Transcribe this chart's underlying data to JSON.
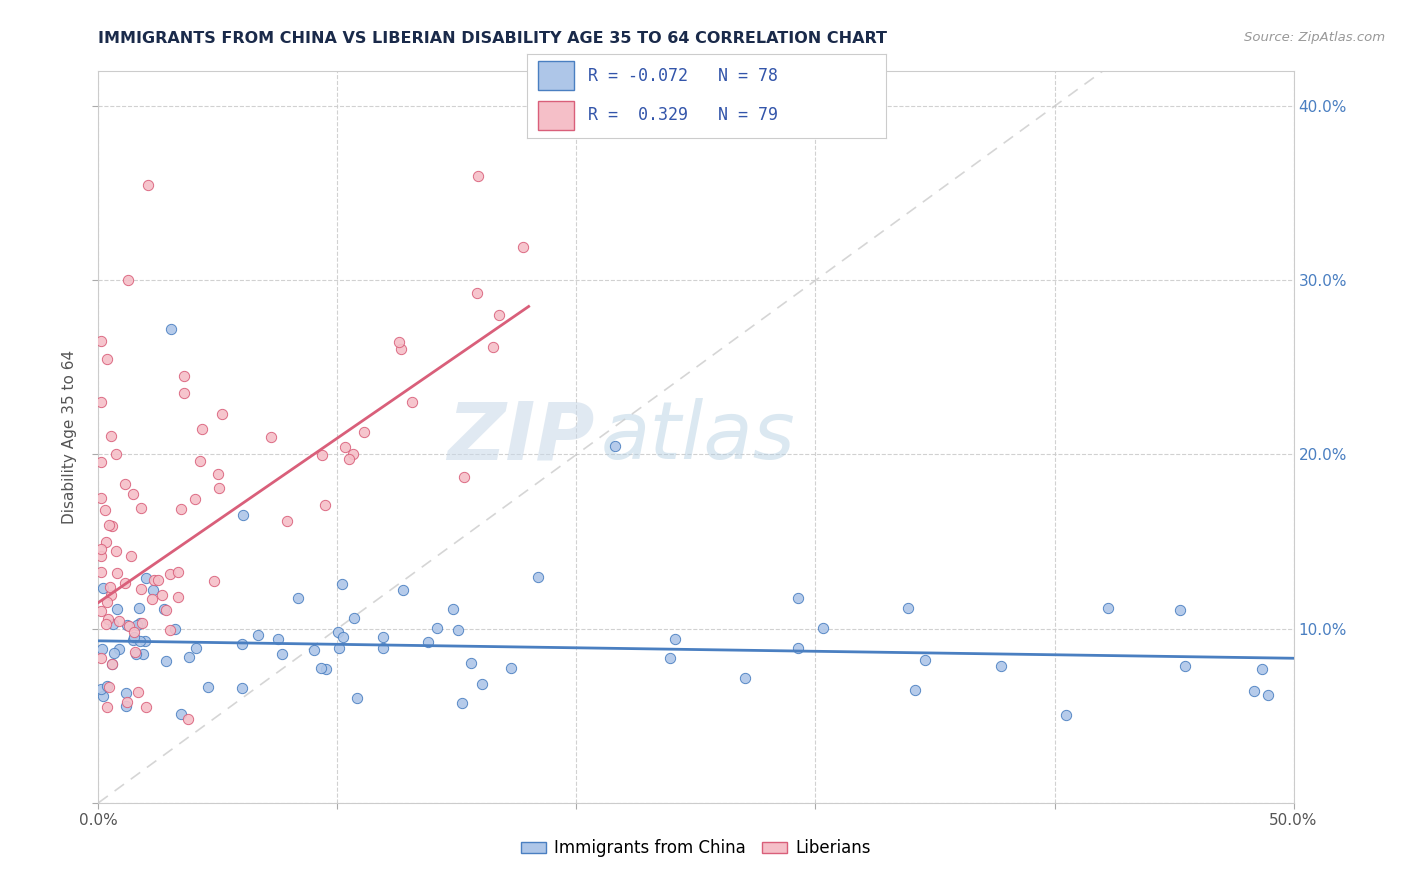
{
  "title": "IMMIGRANTS FROM CHINA VS LIBERIAN DISABILITY AGE 35 TO 64 CORRELATION CHART",
  "source_text": "Source: ZipAtlas.com",
  "ylabel": "Disability Age 35 to 64",
  "xlim": [
    0.0,
    0.5
  ],
  "ylim": [
    0.0,
    0.42
  ],
  "xticks": [
    0.0,
    0.1,
    0.2,
    0.3,
    0.4,
    0.5
  ],
  "xticklabels": [
    "0.0%",
    "",
    "",
    "",
    "",
    "50.0%"
  ],
  "yticks_right": [
    0.1,
    0.2,
    0.3,
    0.4
  ],
  "yticklabels_right": [
    "10.0%",
    "20.0%",
    "30.0%",
    "40.0%"
  ],
  "china_color": "#aec6e8",
  "china_edge_color": "#4a7fc1",
  "liberia_color": "#f5bfc8",
  "liberia_edge_color": "#d95f7a",
  "trend_china_color": "#4a7fc1",
  "trend_liberia_color": "#d95f7a",
  "trend_ref_color": "#c8c8c8",
  "R_china": -0.072,
  "N_china": 78,
  "R_liberia": 0.329,
  "N_liberia": 79,
  "legend_labels": [
    "Immigrants from China",
    "Liberians"
  ],
  "watermark_zip": "ZIP",
  "watermark_atlas": "atlas",
  "china_trend_x0": 0.0,
  "china_trend_y0": 0.093,
  "china_trend_x1": 0.5,
  "china_trend_y1": 0.083,
  "liberia_trend_x0": 0.0,
  "liberia_trend_y0": 0.115,
  "liberia_trend_x1": 0.18,
  "liberia_trend_y1": 0.285,
  "ref_line_x0": 0.0,
  "ref_line_y0": 0.0,
  "ref_line_x1": 0.42,
  "ref_line_y1": 0.42
}
